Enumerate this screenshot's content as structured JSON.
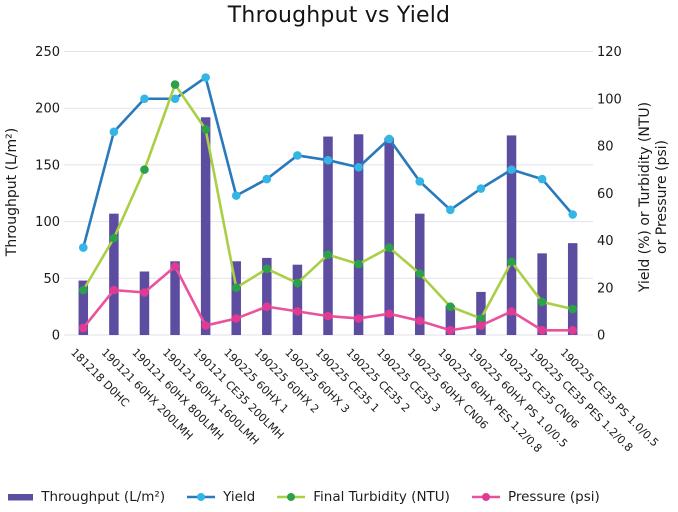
{
  "chart_data": {
    "type": "combo-bar-line",
    "title": "Throughput vs Yield",
    "categories": [
      "181218 D0HC",
      "190121 60HX 200LMH",
      "190121 60HX 800LMH",
      "190121 60HX 1600LMH",
      "190121 CE35 200LMH",
      "190225 60HX 1",
      "190225 60HX 2",
      "190225 60HX 3",
      "190225 CE35 1",
      "190225 CE35 2",
      "190225 CE35 3",
      "190225 60HX CN06",
      "190225 60HX PES 1.2/0.8",
      "190225 60HX PS 1.0/0.5",
      "190225 CE35 CN06",
      "190225 CE35 PES 1.2/0.8",
      "190225 CE35 PS 1.0/0.5"
    ],
    "series": [
      {
        "name": "Throughput (L/m²)",
        "type": "bar",
        "axis": "left",
        "color": "#5d4da1",
        "values": [
          48,
          107,
          56,
          65,
          192,
          65,
          68,
          62,
          175,
          177,
          174,
          107,
          26,
          38,
          176,
          72,
          81
        ]
      },
      {
        "name": "Yield",
        "type": "line",
        "axis": "right",
        "color": "#2979bd",
        "marker_color": "#33b5e6",
        "values": [
          37,
          86,
          100,
          100,
          109,
          59,
          66,
          76,
          74,
          71,
          83,
          65,
          53,
          62,
          70,
          66,
          51
        ]
      },
      {
        "name": "Final Turbidity (NTU)",
        "type": "line",
        "axis": "right",
        "color": "#a9cf46",
        "marker_color": "#2ba14a",
        "values": [
          19,
          41,
          70,
          106,
          87,
          20,
          28,
          22,
          34,
          30,
          37,
          26,
          12,
          7,
          31,
          14,
          11
        ]
      },
      {
        "name": "Pressure (psi)",
        "type": "line",
        "axis": "right",
        "color": "#ea529c",
        "marker_color": "#e23a92",
        "values": [
          3,
          19,
          18,
          29,
          4,
          7,
          12,
          10,
          8,
          7,
          9,
          6,
          2,
          4,
          10,
          2,
          2
        ]
      }
    ],
    "left_axis": {
      "label": "Throughput (L/m²)",
      "min": 0,
      "max": 250,
      "step": 50,
      "ticks": [
        "0",
        "50",
        "100",
        "150",
        "200",
        "250"
      ]
    },
    "right_axis": {
      "label_line1": "Yield (%) or Turbidity (NTU)",
      "label_line2": "or Pressure (psi)",
      "min": 0,
      "max": 120,
      "step": 20,
      "ticks": [
        "0",
        "20",
        "40",
        "60",
        "80",
        "100",
        "120"
      ]
    },
    "grid": true,
    "legend_position": "bottom",
    "colors": {
      "grid": "#e2e2e8",
      "text": "#1a1a1a",
      "background": "#ffffff"
    }
  }
}
